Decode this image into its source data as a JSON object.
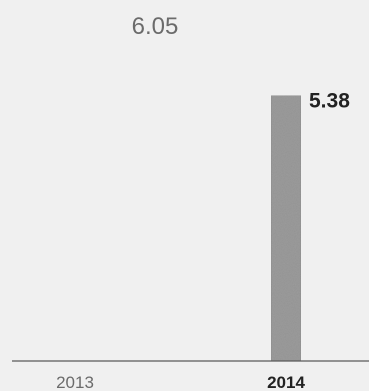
{
  "chart_data": {
    "type": "bar",
    "categories": [
      "2013",
      "2014"
    ],
    "values": [
      6.05,
      5.38
    ],
    "data_labels": [
      "6.05",
      "5.38"
    ],
    "ylim": [
      0,
      5.9
    ],
    "highlight_category": "2014",
    "grid": false,
    "legend": "none",
    "colors": {
      "background": "#f0f0f0",
      "bar": "#9c9c9c",
      "bar_edge": "#8a8a8a",
      "axis": "#5a5a5a",
      "label_light": "#6b6b6b",
      "label_bold": "#222222"
    }
  }
}
